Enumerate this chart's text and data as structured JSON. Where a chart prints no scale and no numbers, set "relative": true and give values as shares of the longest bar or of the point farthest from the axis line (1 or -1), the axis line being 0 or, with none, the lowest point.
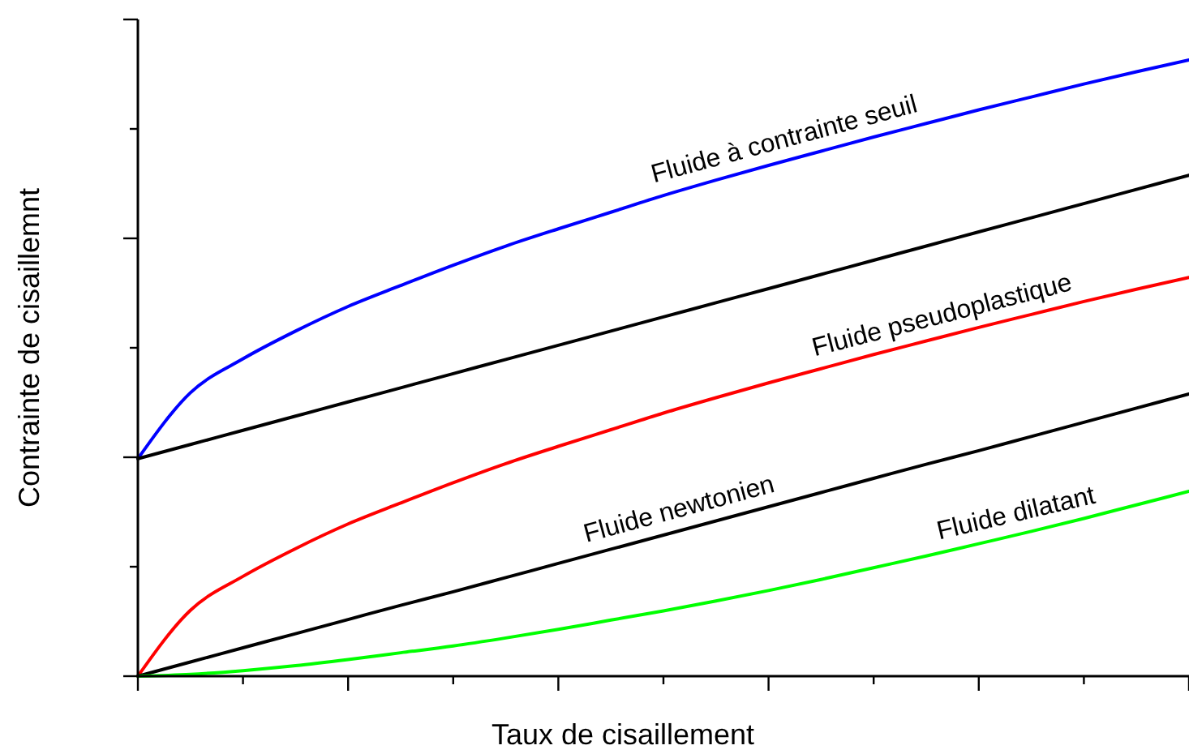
{
  "chart_data": {
    "type": "line",
    "relative": true,
    "xlabel": "Taux de cisaillement",
    "ylabel": "Contrainte de cisaillemnt",
    "categories": [
      null,
      null,
      null,
      null,
      null,
      null,
      null,
      null,
      null,
      null,
      null,
      null,
      null,
      null,
      null,
      null,
      null,
      null,
      null,
      null,
      null
    ],
    "series": [
      {
        "name": "Fluide à contrainte seuil",
        "color": "#0000ff",
        "values": [
          0.353,
          0.46,
          0.515,
          0.56,
          0.6,
          0.634,
          0.667,
          0.698,
          0.726,
          0.753,
          0.78,
          0.805,
          0.829,
          0.852,
          0.875,
          0.897,
          0.919,
          0.94,
          0.961,
          0.981,
          1.0
        ]
      },
      {
        "color": "#000000",
        "values": [
          0.353,
          0.376,
          0.399,
          0.422,
          0.445,
          0.468,
          0.491,
          0.514,
          0.537,
          0.56,
          0.583,
          0.606,
          0.629,
          0.652,
          0.675,
          0.698,
          0.721,
          0.744,
          0.767,
          0.79,
          0.813
        ]
      },
      {
        "name": "Fluide pseudoplastique",
        "color": "#ff0000",
        "values": [
          0,
          0.107,
          0.162,
          0.207,
          0.247,
          0.281,
          0.314,
          0.345,
          0.373,
          0.4,
          0.427,
          0.452,
          0.476,
          0.499,
          0.522,
          0.544,
          0.566,
          0.587,
          0.608,
          0.628,
          0.647
        ]
      },
      {
        "name": "Fluide newtonien",
        "color": "#000000",
        "values": [
          0,
          0.023,
          0.046,
          0.069,
          0.092,
          0.115,
          0.137,
          0.16,
          0.183,
          0.206,
          0.229,
          0.252,
          0.275,
          0.298,
          0.321,
          0.344,
          0.366,
          0.389,
          0.412,
          0.435,
          0.458
        ]
      },
      {
        "name": "Fluide dilatant",
        "color": "#00ff00",
        "values": [
          0,
          0.003,
          0.009,
          0.017,
          0.027,
          0.038,
          0.049,
          0.062,
          0.076,
          0.091,
          0.106,
          0.122,
          0.139,
          0.157,
          0.176,
          0.195,
          0.215,
          0.235,
          0.256,
          0.278,
          0.3
        ]
      }
    ],
    "marker": "none",
    "line_style": "solid"
  }
}
